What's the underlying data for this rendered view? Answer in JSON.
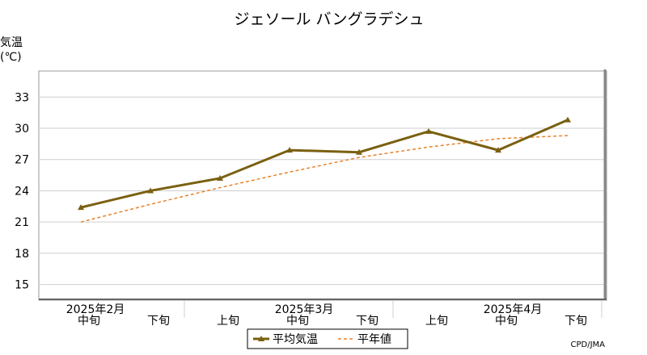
{
  "chart_data": {
    "type": "line",
    "title": "ジェソール バングラデシュ",
    "ylabel": "気温",
    "yunit": "(℃)",
    "ylim": [
      13.5,
      35.5
    ],
    "yticks": [
      15,
      18,
      21,
      24,
      27,
      30,
      33
    ],
    "grid": true,
    "legend_placement": "bottom-center",
    "categories": [
      "中旬",
      "下旬",
      "上旬",
      "中旬",
      "下旬",
      "上旬",
      "中旬",
      "下旬"
    ],
    "month_labels": [
      {
        "label": "2025年2月",
        "index": 0
      },
      {
        "label": "2025年3月",
        "index": 3
      },
      {
        "label": "2025年4月",
        "index": 6
      }
    ],
    "series": [
      {
        "name": "平均気温",
        "values": [
          22.4,
          24.0,
          25.2,
          27.9,
          27.7,
          29.7,
          27.9,
          30.8
        ],
        "color": "#7a6010",
        "style": "solid-triangle"
      },
      {
        "name": "平年値",
        "values": [
          21.0,
          22.7,
          24.3,
          25.8,
          27.2,
          28.2,
          29.0,
          29.3
        ],
        "color": "#e8822a",
        "style": "dashed"
      }
    ],
    "source": "CPD/JMA"
  }
}
